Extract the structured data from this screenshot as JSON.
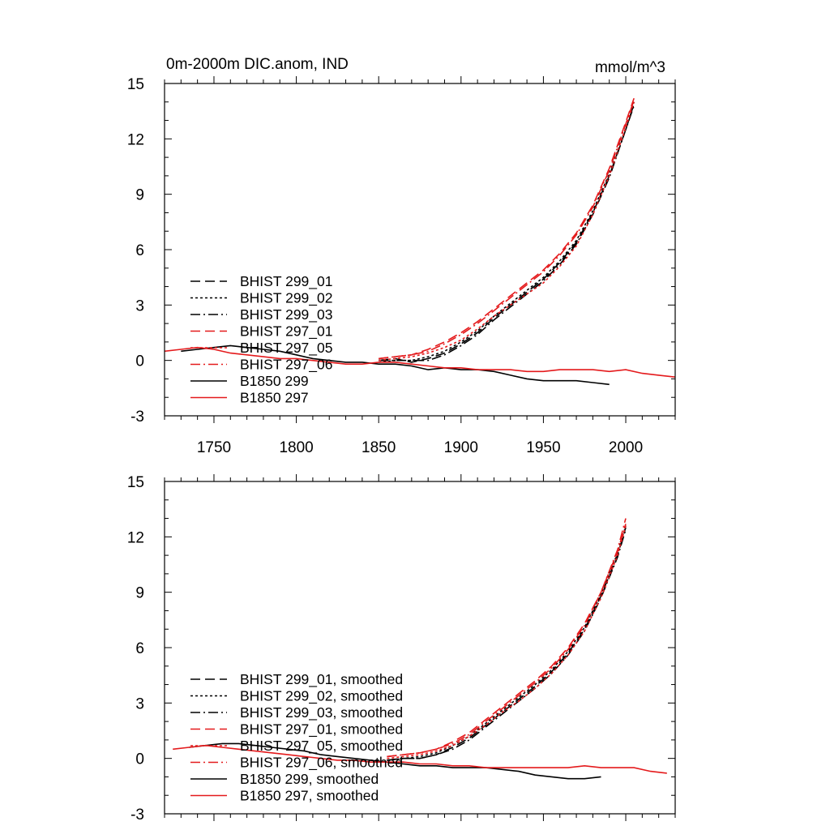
{
  "chart_data": [
    {
      "type": "line",
      "title": "0m-2000m DIC.anom, IND",
      "units": "mmol/m^3",
      "xlabel": "",
      "ylabel": "",
      "xlim": [
        1720,
        2030
      ],
      "ylim": [
        -3,
        15
      ],
      "yticks": [
        -3,
        0,
        3,
        6,
        9,
        12,
        15
      ],
      "yticklabels": [
        "-3",
        "0",
        "3",
        "6",
        "9",
        "12",
        "15"
      ],
      "xticks": [
        1750,
        1800,
        1850,
        1900,
        1950,
        2000
      ],
      "xticklabels": [
        "1750",
        "1800",
        "1850",
        "1900",
        "1950",
        "2000"
      ],
      "legend_position": "lower-left",
      "series": [
        {
          "name": "BHIST 299_01",
          "color": "#000000",
          "dash": "dashed",
          "x": [
            1850,
            1860,
            1870,
            1880,
            1890,
            1900,
            1910,
            1920,
            1930,
            1940,
            1950,
            1960,
            1970,
            1980,
            1990,
            2000,
            2005
          ],
          "y": [
            0.0,
            0.1,
            -0.1,
            0.1,
            0.4,
            0.9,
            1.5,
            2.3,
            3.0,
            3.7,
            4.4,
            5.3,
            6.4,
            8.0,
            10.0,
            12.5,
            13.9
          ]
        },
        {
          "name": "BHIST 299_02",
          "color": "#000000",
          "dash": "dotted",
          "x": [
            1850,
            1860,
            1870,
            1880,
            1890,
            1900,
            1910,
            1920,
            1930,
            1940,
            1950,
            1960,
            1970,
            1980,
            1990,
            2000,
            2005
          ],
          "y": [
            -0.1,
            0.0,
            0.0,
            0.2,
            0.5,
            1.0,
            1.6,
            2.4,
            3.1,
            3.8,
            4.5,
            5.4,
            6.5,
            8.1,
            10.1,
            12.6,
            14.0
          ]
        },
        {
          "name": "BHIST 299_03",
          "color": "#000000",
          "dash": "dashdot",
          "x": [
            1850,
            1860,
            1870,
            1880,
            1890,
            1900,
            1910,
            1920,
            1930,
            1940,
            1950,
            1960,
            1970,
            1980,
            1990,
            2000,
            2005
          ],
          "y": [
            0.0,
            0.0,
            0.0,
            0.0,
            0.3,
            0.8,
            1.4,
            2.2,
            2.9,
            3.6,
            4.3,
            5.2,
            6.3,
            7.9,
            9.9,
            12.5,
            13.8
          ]
        },
        {
          "name": "BHIST 297_01",
          "color": "#e41a1c",
          "dash": "dashed",
          "x": [
            1850,
            1860,
            1870,
            1880,
            1890,
            1900,
            1910,
            1920,
            1930,
            1940,
            1950,
            1960,
            1970,
            1980,
            1990,
            2000,
            2005
          ],
          "y": [
            0.1,
            0.2,
            0.3,
            0.6,
            1.0,
            1.5,
            2.1,
            2.8,
            3.5,
            4.2,
            4.9,
            5.8,
            6.9,
            8.4,
            10.4,
            12.9,
            14.2
          ]
        },
        {
          "name": "BHIST 297_05",
          "color": "#e41a1c",
          "dash": "dotted",
          "x": [
            1850,
            1860,
            1870,
            1880,
            1890,
            1900,
            1910,
            1920,
            1930,
            1940,
            1950,
            1960,
            1970,
            1980,
            1990,
            2000,
            2005
          ],
          "y": [
            0.0,
            0.1,
            0.2,
            0.4,
            0.7,
            1.1,
            1.7,
            2.4,
            3.0,
            3.6,
            4.2,
            5.1,
            6.2,
            7.9,
            10.0,
            12.6,
            14.0
          ]
        },
        {
          "name": "BHIST 297_06",
          "color": "#e41a1c",
          "dash": "dashdot",
          "x": [
            1850,
            1860,
            1870,
            1880,
            1890,
            1900,
            1910,
            1920,
            1930,
            1940,
            1950,
            1960,
            1970,
            1980,
            1990,
            2000,
            2005
          ],
          "y": [
            0.1,
            0.2,
            0.3,
            0.5,
            0.9,
            1.4,
            2.0,
            2.7,
            3.4,
            4.1,
            4.8,
            5.7,
            6.8,
            8.3,
            10.3,
            12.8,
            14.1
          ]
        },
        {
          "name": "B1850 299",
          "color": "#000000",
          "dash": "solid",
          "x": [
            1730,
            1740,
            1750,
            1760,
            1770,
            1780,
            1790,
            1800,
            1810,
            1820,
            1830,
            1840,
            1850,
            1860,
            1870,
            1880,
            1890,
            1900,
            1910,
            1920,
            1930,
            1940,
            1950,
            1960,
            1970,
            1980,
            1990
          ],
          "y": [
            0.5,
            0.6,
            0.7,
            0.8,
            0.7,
            0.6,
            0.5,
            0.3,
            0.1,
            0.0,
            -0.1,
            -0.1,
            -0.2,
            -0.2,
            -0.3,
            -0.5,
            -0.4,
            -0.5,
            -0.5,
            -0.6,
            -0.8,
            -1.0,
            -1.1,
            -1.1,
            -1.1,
            -1.2,
            -1.3
          ]
        },
        {
          "name": "B1850 297",
          "color": "#e41a1c",
          "dash": "solid",
          "x": [
            1720,
            1730,
            1740,
            1750,
            1760,
            1770,
            1780,
            1790,
            1800,
            1810,
            1820,
            1830,
            1840,
            1850,
            1860,
            1870,
            1880,
            1890,
            1900,
            1910,
            1920,
            1930,
            1940,
            1950,
            1960,
            1970,
            1980,
            1990,
            2000,
            2010,
            2020,
            2030
          ],
          "y": [
            0.5,
            0.6,
            0.7,
            0.6,
            0.4,
            0.3,
            0.2,
            0.1,
            0.1,
            0.0,
            -0.1,
            -0.2,
            -0.2,
            -0.1,
            -0.1,
            -0.2,
            -0.3,
            -0.4,
            -0.4,
            -0.5,
            -0.5,
            -0.5,
            -0.6,
            -0.6,
            -0.5,
            -0.5,
            -0.5,
            -0.6,
            -0.5,
            -0.7,
            -0.8,
            -0.9
          ]
        }
      ]
    },
    {
      "type": "line",
      "title": "",
      "xlabel": "",
      "ylabel": "",
      "xlim": [
        1720,
        2030
      ],
      "ylim": [
        -3,
        15
      ],
      "yticks": [
        -3,
        0,
        3,
        6,
        9,
        12,
        15
      ],
      "yticklabels": [
        "-3",
        "0",
        "3",
        "6",
        "9",
        "12",
        "15"
      ],
      "xticks": [
        1750,
        1800,
        1850,
        1900,
        1950,
        2000
      ],
      "xticklabels": [],
      "legend_position": "lower-left",
      "series": [
        {
          "name": "BHIST 299_01, smoothed",
          "color": "#000000",
          "dash": "dashed",
          "x": [
            1855,
            1865,
            1875,
            1885,
            1895,
            1905,
            1915,
            1925,
            1935,
            1945,
            1955,
            1965,
            1975,
            1985,
            1995,
            2000
          ],
          "y": [
            -0.1,
            0.0,
            0.0,
            0.2,
            0.6,
            1.1,
            1.8,
            2.5,
            3.2,
            3.9,
            4.7,
            5.7,
            7.0,
            8.8,
            11.0,
            12.5
          ]
        },
        {
          "name": "BHIST 299_02, smoothed",
          "color": "#000000",
          "dash": "dotted",
          "x": [
            1855,
            1865,
            1875,
            1885,
            1895,
            1905,
            1915,
            1925,
            1935,
            1945,
            1955,
            1965,
            1975,
            1985,
            1995,
            2000
          ],
          "y": [
            -0.1,
            0.0,
            0.1,
            0.3,
            0.7,
            1.2,
            1.9,
            2.6,
            3.3,
            4.0,
            4.8,
            5.8,
            7.1,
            8.9,
            11.1,
            12.6
          ]
        },
        {
          "name": "BHIST 299_03, smoothed",
          "color": "#000000",
          "dash": "dashdot",
          "x": [
            1855,
            1865,
            1875,
            1885,
            1895,
            1905,
            1915,
            1925,
            1935,
            1945,
            1955,
            1965,
            1975,
            1985,
            1995,
            2000
          ],
          "y": [
            -0.1,
            0.0,
            0.0,
            0.2,
            0.5,
            1.0,
            1.7,
            2.4,
            3.1,
            3.8,
            4.6,
            5.6,
            6.9,
            8.7,
            10.9,
            12.4
          ]
        },
        {
          "name": "BHIST 297_01, smoothed",
          "color": "#e41a1c",
          "dash": "dashed",
          "x": [
            1855,
            1865,
            1875,
            1885,
            1895,
            1905,
            1915,
            1925,
            1935,
            1945,
            1955,
            1965,
            1975,
            1985,
            1995,
            2000
          ],
          "y": [
            0.1,
            0.2,
            0.3,
            0.5,
            0.9,
            1.4,
            2.1,
            2.8,
            3.5,
            4.2,
            5.0,
            6.0,
            7.3,
            9.0,
            11.2,
            12.7
          ]
        },
        {
          "name": "BHIST 297_05, smoothed",
          "color": "#e41a1c",
          "dash": "dotted",
          "x": [
            1855,
            1865,
            1875,
            1885,
            1895,
            1905,
            1915,
            1925,
            1935,
            1945,
            1955,
            1965,
            1975,
            1985,
            1995,
            2000
          ],
          "y": [
            0.0,
            0.1,
            0.2,
            0.4,
            0.7,
            1.2,
            1.8,
            2.5,
            3.1,
            3.8,
            4.6,
            5.6,
            6.9,
            8.7,
            11.0,
            12.6
          ]
        },
        {
          "name": "BHIST 297_06, smoothed",
          "color": "#e41a1c",
          "dash": "dashdot",
          "x": [
            1855,
            1865,
            1875,
            1885,
            1895,
            1905,
            1915,
            1925,
            1935,
            1945,
            1955,
            1965,
            1975,
            1985,
            1995,
            2000
          ],
          "y": [
            0.1,
            0.2,
            0.3,
            0.5,
            0.8,
            1.3,
            2.0,
            2.7,
            3.4,
            4.1,
            4.9,
            5.9,
            7.2,
            9.0,
            11.3,
            13.0
          ]
        },
        {
          "name": "B1850 299, smoothed",
          "color": "#000000",
          "dash": "solid",
          "x": [
            1735,
            1745,
            1755,
            1765,
            1775,
            1785,
            1795,
            1805,
            1815,
            1825,
            1835,
            1845,
            1855,
            1865,
            1875,
            1885,
            1895,
            1905,
            1915,
            1925,
            1935,
            1945,
            1955,
            1965,
            1975,
            1985
          ],
          "y": [
            0.6,
            0.7,
            0.8,
            0.8,
            0.7,
            0.6,
            0.5,
            0.4,
            0.2,
            0.1,
            0.0,
            -0.1,
            -0.2,
            -0.3,
            -0.4,
            -0.4,
            -0.5,
            -0.5,
            -0.5,
            -0.6,
            -0.7,
            -0.9,
            -1.0,
            -1.1,
            -1.1,
            -1.0
          ]
        },
        {
          "name": "B1850 297, smoothed",
          "color": "#e41a1c",
          "dash": "solid",
          "x": [
            1725,
            1735,
            1745,
            1755,
            1765,
            1775,
            1785,
            1795,
            1805,
            1815,
            1825,
            1835,
            1845,
            1855,
            1865,
            1875,
            1885,
            1895,
            1905,
            1915,
            1925,
            1935,
            1945,
            1955,
            1965,
            1975,
            1985,
            1995,
            2005,
            2015,
            2025
          ],
          "y": [
            0.5,
            0.6,
            0.7,
            0.6,
            0.5,
            0.4,
            0.3,
            0.2,
            0.1,
            0.0,
            -0.1,
            -0.1,
            -0.2,
            -0.2,
            -0.2,
            -0.3,
            -0.3,
            -0.4,
            -0.4,
            -0.5,
            -0.5,
            -0.5,
            -0.5,
            -0.5,
            -0.5,
            -0.4,
            -0.5,
            -0.5,
            -0.5,
            -0.7,
            -0.8
          ]
        }
      ]
    }
  ]
}
